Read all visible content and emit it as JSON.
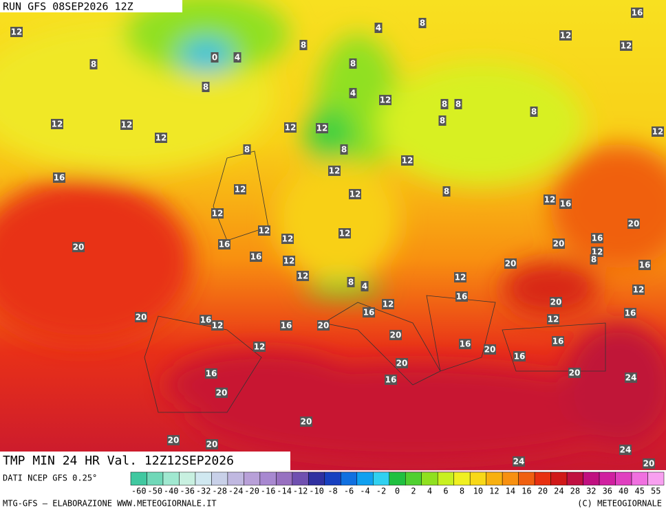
{
  "header": {
    "run": "RUN GFS 08SEP2026 12Z"
  },
  "map": {
    "title": "TMP MIN 24 HR Val. 12Z12SEP2026",
    "labels": [
      12,
      8,
      8,
      0,
      4,
      8,
      4,
      8,
      16,
      12,
      12,
      8,
      4,
      12,
      8,
      8,
      8,
      8,
      12,
      12,
      12,
      12,
      12,
      12,
      8,
      8,
      12,
      12,
      16,
      12,
      12,
      8,
      12,
      12,
      16,
      20,
      12,
      12,
      12,
      16,
      16,
      12,
      20,
      20,
      16,
      12,
      8,
      16,
      20,
      12,
      8,
      4,
      12,
      12,
      16,
      20,
      12,
      16,
      12,
      16,
      20,
      16,
      12,
      16,
      20,
      20,
      16,
      20,
      16,
      12,
      16,
      20,
      16,
      20,
      16,
      24,
      20,
      20,
      20,
      20,
      24,
      24,
      20
    ]
  },
  "legend": {
    "source": "DATI NCEP GFS 0.25°",
    "ticks": [
      -60,
      -50,
      -40,
      -36,
      -32,
      -28,
      -24,
      -20,
      -16,
      -14,
      -12,
      -10,
      -8,
      -6,
      -4,
      -2,
      0,
      2,
      4,
      6,
      8,
      10,
      12,
      14,
      16,
      20,
      24,
      28,
      32,
      36,
      40,
      45,
      55
    ],
    "colors": [
      "#40c8a0",
      "#70d8b8",
      "#a0e8d0",
      "#c8f0e0",
      "#d0e8f0",
      "#c8d0e8",
      "#c0b8e0",
      "#b8a0d8",
      "#a888d0",
      "#9870c0",
      "#7050b0",
      "#3030a0",
      "#1840c0",
      "#1070e0",
      "#10a0f0",
      "#30d0f0",
      "#20c040",
      "#50d030",
      "#90e020",
      "#c8f020",
      "#f0f020",
      "#f8d818",
      "#f8b010",
      "#f89010",
      "#f06010",
      "#e83010",
      "#d01818",
      "#c01040",
      "#c01080",
      "#d020a0",
      "#e040c0",
      "#f070e0",
      "#f8a0f0"
    ]
  },
  "footer": {
    "left": "MTG-GFS — ELABORAZIONE WWW.METEOGIORNALE.IT",
    "right": "(C) METEOGIORNALE"
  }
}
